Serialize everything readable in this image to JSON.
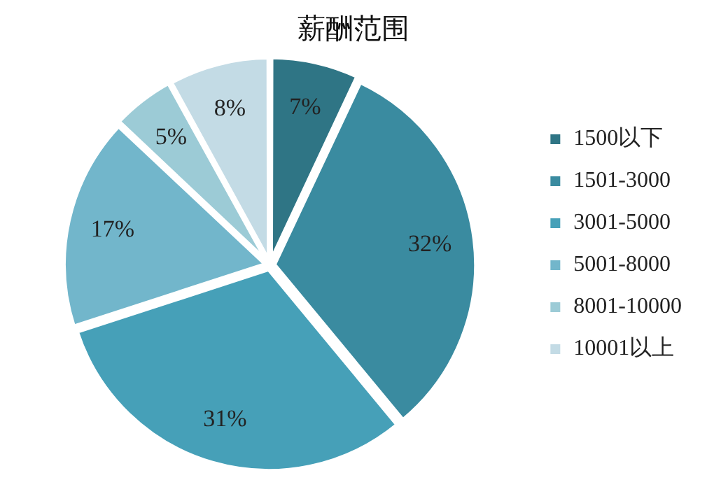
{
  "chart_data": {
    "type": "pie",
    "title": "薪酬范围",
    "categories": [
      "1500以下",
      "1501-3000",
      "3001-5000",
      "5001-8000",
      "8001-10000",
      "10001以上"
    ],
    "values": [
      7,
      32,
      31,
      17,
      5,
      8
    ],
    "value_labels": [
      "7%",
      "32%",
      "31%",
      "17%",
      "5%",
      "8%"
    ],
    "colors": [
      "#2f7585",
      "#3a8ba0",
      "#46a0b8",
      "#72b6cb",
      "#9ccbd6",
      "#c3dbe5"
    ],
    "legend": "right"
  }
}
